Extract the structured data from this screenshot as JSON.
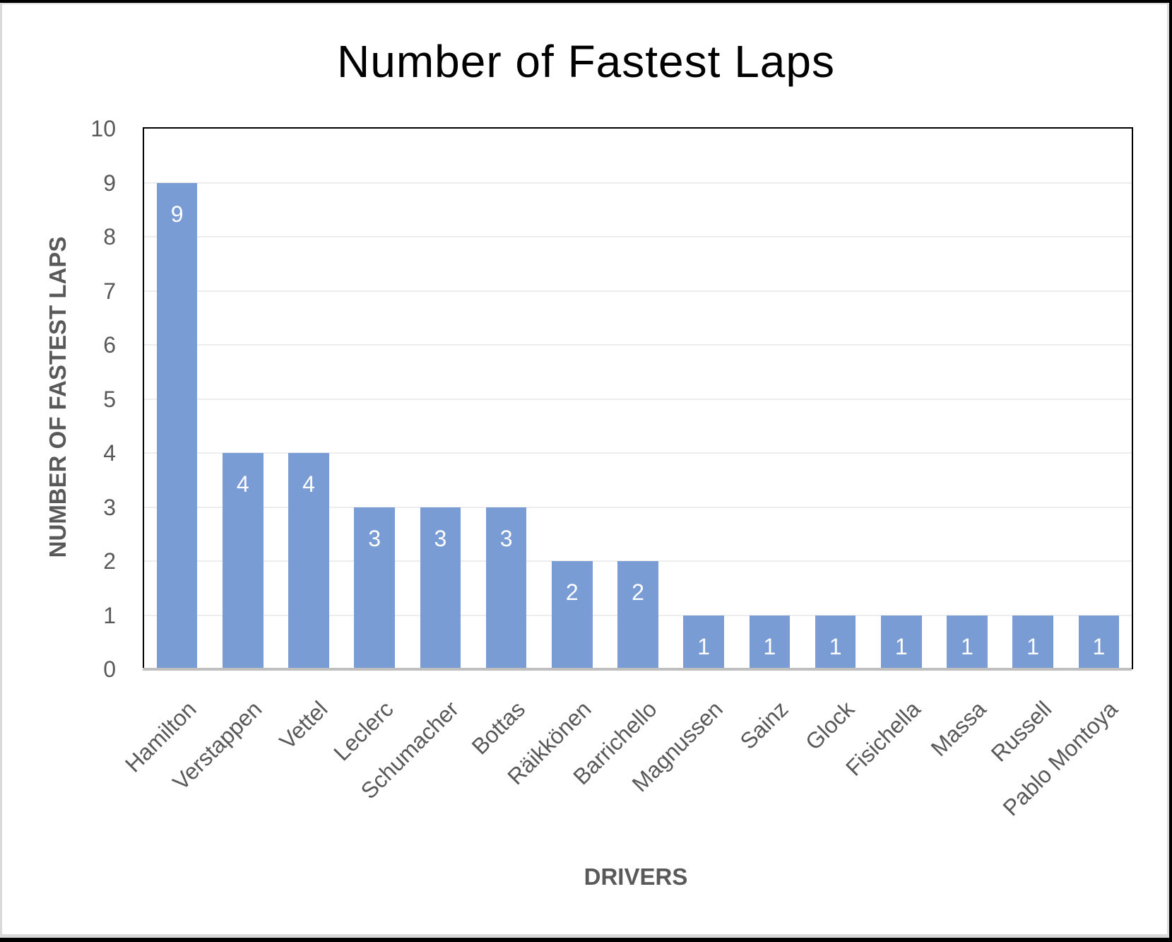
{
  "chart_data": {
    "type": "bar",
    "title": "Number of Fastest Laps",
    "xlabel": "DRIVERS",
    "ylabel": "NUMBER OF FASTEST LAPS",
    "categories": [
      "Hamilton",
      "Verstappen",
      "Vettel",
      "Leclerc",
      "Schumacher",
      "Bottas",
      "Räikkönen",
      "Barrichello",
      "Magnussen",
      "Sainz",
      "Glock",
      "Fisichella",
      "Massa",
      "Russell",
      "Pablo Montoya"
    ],
    "values": [
      9,
      4,
      4,
      3,
      3,
      3,
      2,
      2,
      1,
      1,
      1,
      1,
      1,
      1,
      1
    ],
    "ylim": [
      0,
      10
    ],
    "yticks": [
      0,
      1,
      2,
      3,
      4,
      5,
      6,
      7,
      8,
      9,
      10
    ],
    "grid": true,
    "data_labels": true,
    "legend": null,
    "colors": {
      "bar": "#7A9CD5",
      "axis_text": "#595959",
      "gridline": "#EDEDED"
    }
  }
}
